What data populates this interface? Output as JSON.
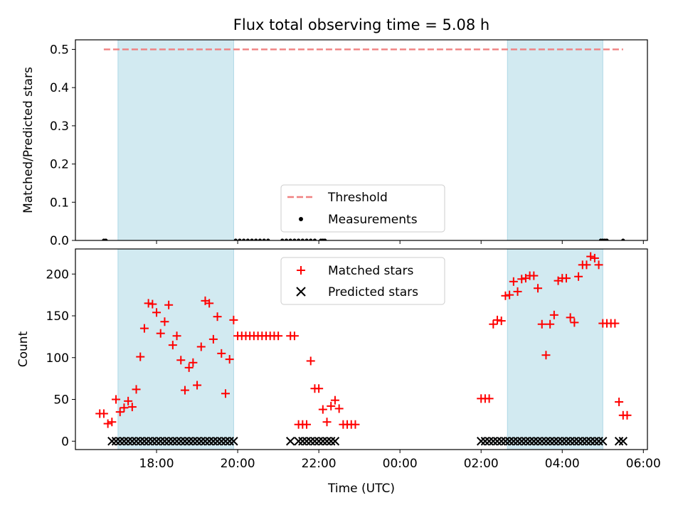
{
  "chart_data": {
    "type": "scatter",
    "title": "Flux total observing time = 5.08 h",
    "xlabel": "Time (UTC)",
    "xlim_hours": [
      16.0,
      30.1
    ],
    "x_ticks": [
      {
        "h": 18,
        "label": "18:00"
      },
      {
        "h": 20,
        "label": "20:00"
      },
      {
        "h": 22,
        "label": "22:00"
      },
      {
        "h": 24,
        "label": "00:00"
      },
      {
        "h": 26,
        "label": "02:00"
      },
      {
        "h": 28,
        "label": "04:00"
      },
      {
        "h": 30,
        "label": "06:00"
      }
    ],
    "shaded_intervals_hours": [
      [
        17.05,
        19.9
      ],
      [
        26.65,
        29.0
      ]
    ],
    "top_panel": {
      "ylabel": "Matched/Predicted stars",
      "ylim": [
        0,
        0.525
      ],
      "y_ticks": [
        {
          "v": 0.0,
          "label": "0.0"
        },
        {
          "v": 0.1,
          "label": "0.1"
        },
        {
          "v": 0.2,
          "label": "0.2"
        },
        {
          "v": 0.3,
          "label": "0.3"
        },
        {
          "v": 0.4,
          "label": "0.4"
        },
        {
          "v": 0.5,
          "label": "0.5"
        }
      ],
      "threshold": {
        "value": 0.5,
        "x_range": [
          16.7,
          29.5
        ],
        "color": "#f08080"
      },
      "measurements": {
        "color": "#000000",
        "x": [
          16.7,
          16.75,
          19.95,
          20.05,
          20.15,
          20.25,
          20.35,
          20.45,
          20.55,
          20.65,
          20.75,
          21.1,
          21.2,
          21.3,
          21.4,
          21.5,
          21.6,
          21.7,
          21.8,
          21.9,
          22.05,
          22.1,
          22.15,
          28.95,
          29.0,
          29.05,
          29.1,
          29.5
        ],
        "y": [
          0,
          0,
          0,
          0,
          0,
          0,
          0,
          0,
          0,
          0,
          0,
          0,
          0,
          0,
          0,
          0,
          0,
          0,
          0,
          0,
          0,
          0,
          0,
          0,
          0,
          0,
          0,
          0
        ]
      },
      "legend": [
        {
          "label": "Threshold"
        },
        {
          "label": "Measurements"
        }
      ]
    },
    "bottom_panel": {
      "ylabel": "Count",
      "ylim": [
        -10,
        230
      ],
      "y_ticks": [
        {
          "v": 0,
          "label": "0"
        },
        {
          "v": 50,
          "label": "50"
        },
        {
          "v": 100,
          "label": "100"
        },
        {
          "v": 150,
          "label": "150"
        },
        {
          "v": 200,
          "label": "200"
        }
      ],
      "series": [
        {
          "name": "Matched stars",
          "marker": "plus",
          "color": "#ff0000",
          "points": [
            [
              16.6,
              33
            ],
            [
              16.7,
              33
            ],
            [
              16.8,
              21
            ],
            [
              16.9,
              23
            ],
            [
              17.0,
              50
            ],
            [
              17.1,
              35
            ],
            [
              17.2,
              40
            ],
            [
              17.3,
              48
            ],
            [
              17.4,
              41
            ],
            [
              17.5,
              62
            ],
            [
              17.6,
              101
            ],
            [
              17.7,
              135
            ],
            [
              17.8,
              165
            ],
            [
              17.9,
              164
            ],
            [
              18.0,
              154
            ],
            [
              18.1,
              129
            ],
            [
              18.2,
              143
            ],
            [
              18.3,
              163
            ],
            [
              18.4,
              115
            ],
            [
              18.5,
              126
            ],
            [
              18.6,
              97
            ],
            [
              18.7,
              61
            ],
            [
              18.8,
              88
            ],
            [
              18.9,
              94
            ],
            [
              19.0,
              67
            ],
            [
              19.1,
              113
            ],
            [
              19.2,
              168
            ],
            [
              19.3,
              165
            ],
            [
              19.4,
              122
            ],
            [
              19.5,
              149
            ],
            [
              19.6,
              105
            ],
            [
              19.7,
              57
            ],
            [
              19.8,
              98
            ],
            [
              19.9,
              145
            ],
            [
              20.0,
              126
            ],
            [
              20.1,
              126
            ],
            [
              20.2,
              126
            ],
            [
              20.3,
              126
            ],
            [
              20.4,
              126
            ],
            [
              20.5,
              126
            ],
            [
              20.6,
              126
            ],
            [
              20.7,
              126
            ],
            [
              20.8,
              126
            ],
            [
              20.9,
              126
            ],
            [
              21.0,
              126
            ],
            [
              21.3,
              126
            ],
            [
              21.4,
              126
            ],
            [
              21.5,
              20
            ],
            [
              21.6,
              20
            ],
            [
              21.7,
              20
            ],
            [
              21.8,
              96
            ],
            [
              21.9,
              63
            ],
            [
              22.0,
              63
            ],
            [
              22.1,
              38
            ],
            [
              22.2,
              23
            ],
            [
              22.3,
              42
            ],
            [
              22.4,
              49
            ],
            [
              22.5,
              39
            ],
            [
              22.6,
              20
            ],
            [
              22.7,
              20
            ],
            [
              22.8,
              20
            ],
            [
              22.9,
              20
            ],
            [
              26.0,
              51
            ],
            [
              26.1,
              51
            ],
            [
              26.2,
              51
            ],
            [
              26.3,
              140
            ],
            [
              26.4,
              145
            ],
            [
              26.5,
              144
            ],
            [
              26.6,
              174
            ],
            [
              26.7,
              175
            ],
            [
              26.8,
              191
            ],
            [
              26.9,
              179
            ],
            [
              27.0,
              194
            ],
            [
              27.1,
              195
            ],
            [
              27.2,
              198
            ],
            [
              27.3,
              198
            ],
            [
              27.4,
              183
            ],
            [
              27.5,
              140
            ],
            [
              27.6,
              103
            ],
            [
              27.7,
              140
            ],
            [
              27.8,
              151
            ],
            [
              27.9,
              192
            ],
            [
              28.0,
              195
            ],
            [
              28.1,
              195
            ],
            [
              28.2,
              148
            ],
            [
              28.3,
              142
            ],
            [
              28.4,
              197
            ],
            [
              28.5,
              211
            ],
            [
              28.6,
              211
            ],
            [
              28.7,
              221
            ],
            [
              28.8,
              219
            ],
            [
              28.9,
              211
            ],
            [
              29.0,
              141
            ],
            [
              29.1,
              141
            ],
            [
              29.2,
              141
            ],
            [
              29.3,
              141
            ],
            [
              29.4,
              47
            ],
            [
              29.5,
              31
            ],
            [
              29.6,
              31
            ]
          ]
        },
        {
          "name": "Predicted stars",
          "marker": "x",
          "color": "#000000",
          "points": []
        }
      ]
    }
  }
}
